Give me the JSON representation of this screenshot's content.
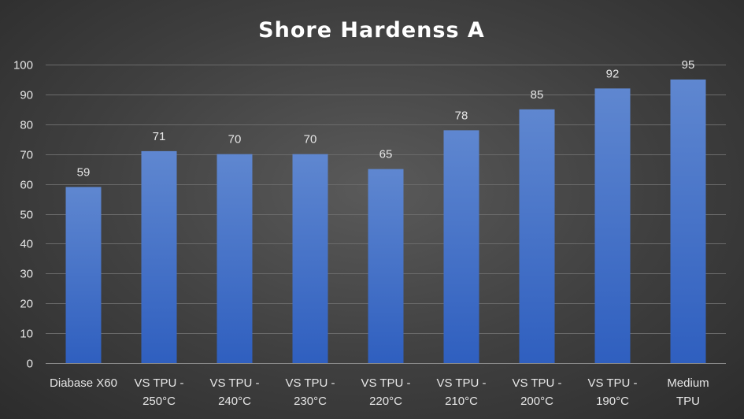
{
  "chart_data": {
    "type": "bar",
    "title": "Shore Hardenss A",
    "categories": [
      [
        "Diabase X60"
      ],
      [
        "VS TPU -",
        "250°C"
      ],
      [
        "VS TPU -",
        "240°C"
      ],
      [
        "VS TPU -",
        "230°C"
      ],
      [
        "VS TPU -",
        "220°C"
      ],
      [
        "VS TPU -",
        "210°C"
      ],
      [
        "VS TPU -",
        "200°C"
      ],
      [
        "VS TPU -",
        "190°C"
      ],
      [
        "Medium",
        "TPU"
      ]
    ],
    "values": [
      59,
      71,
      70,
      70,
      65,
      78,
      85,
      92,
      95
    ],
    "ylim": [
      0,
      100
    ],
    "yticks": [
      0,
      10,
      20,
      30,
      40,
      50,
      60,
      70,
      80,
      90,
      100
    ],
    "grid": true,
    "legend": "none",
    "colors": {
      "bar_top": "#5f87d0",
      "bar_bottom": "#2f5fbf",
      "grid": "#6b6b6b",
      "text": "#e6e6e6",
      "title": "#ffffff"
    }
  }
}
